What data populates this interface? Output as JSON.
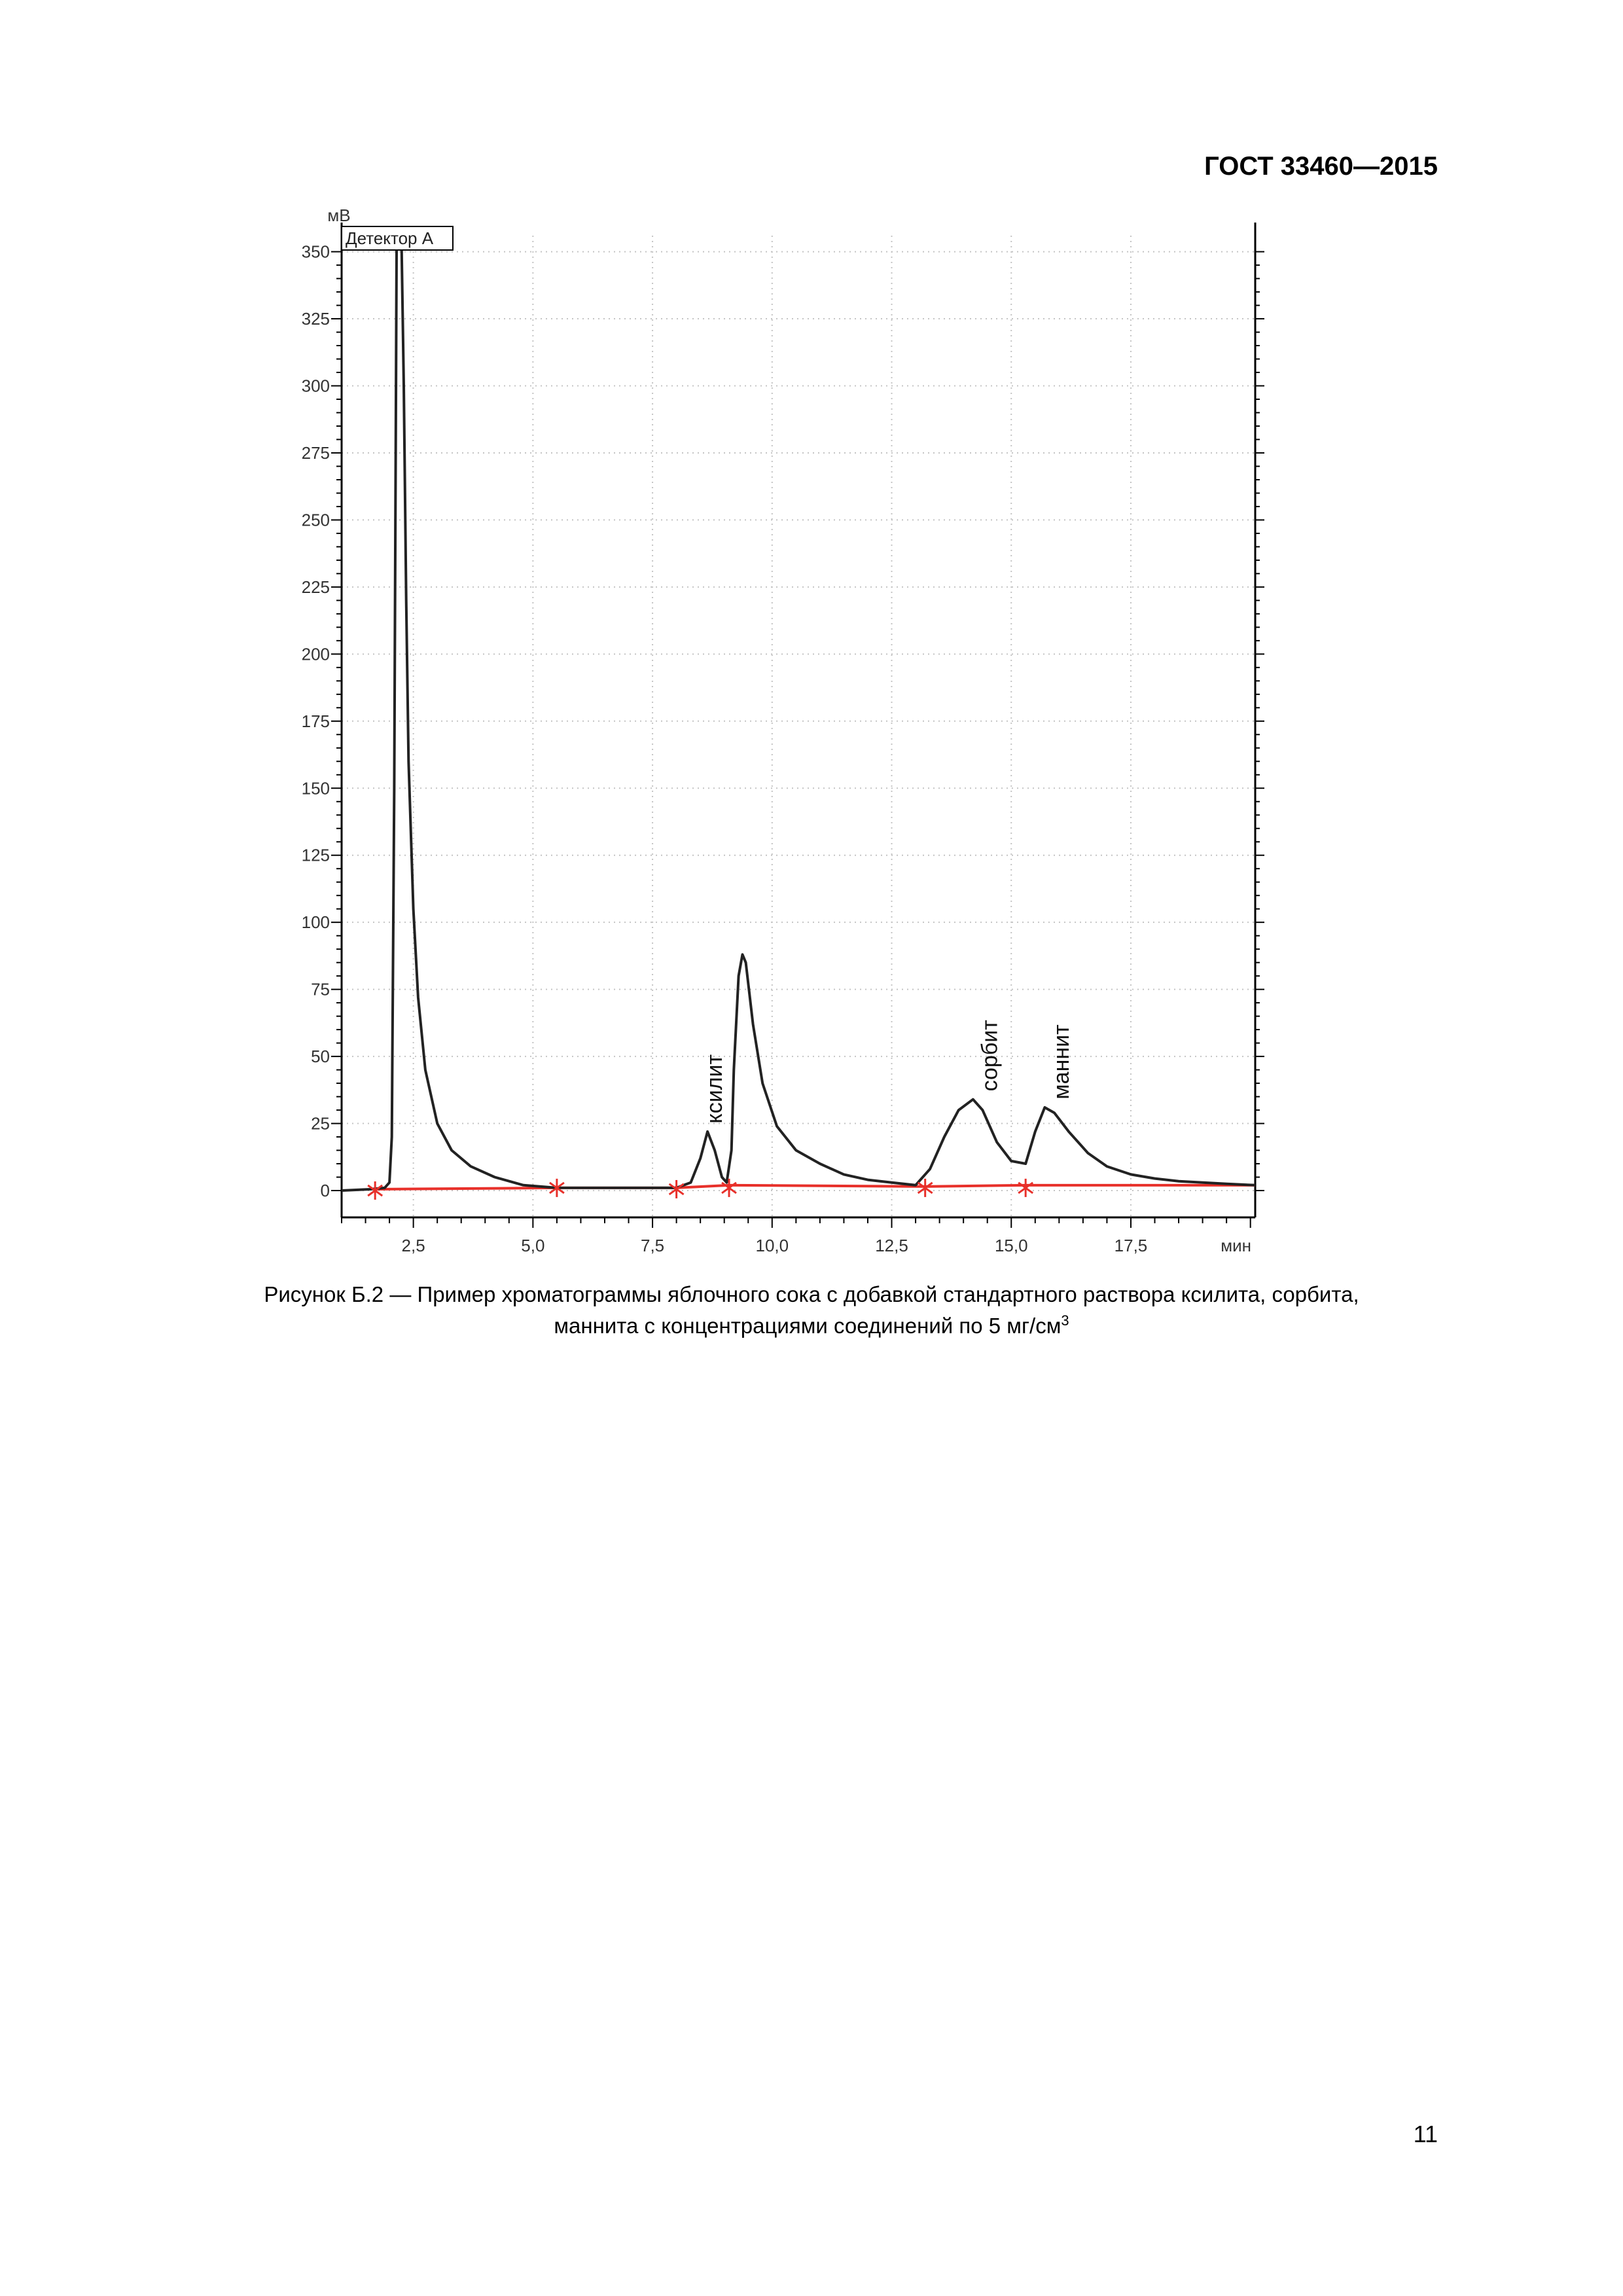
{
  "document": {
    "header": "ГОСТ 33460—2015",
    "caption_line1": "Рисунок Б.2 — Пример хроматограммы яблочного сока с добавкой стандартного раствора ксилита, сорбита,",
    "caption_line2": "маннита с концентрациями соединений по 5 мг/см",
    "caption_sup": "3",
    "page_number": "11"
  },
  "chart_data": {
    "type": "line",
    "legend": "Детектор А",
    "xlabel": "мин",
    "ylabel": "мВ",
    "xlim": [
      1.0,
      20.1
    ],
    "ylim": [
      -10,
      356
    ],
    "x_ticks": [
      2.5,
      5.0,
      7.5,
      10.0,
      12.5,
      15.0,
      17.5
    ],
    "x_tick_labels": [
      "2,5",
      "5,0",
      "7,5",
      "10,0",
      "12,5",
      "15,0",
      "17,5"
    ],
    "y_ticks": [
      0,
      25,
      50,
      75,
      100,
      125,
      150,
      175,
      200,
      225,
      250,
      275,
      300,
      325,
      350
    ],
    "y_tick_labels": [
      "0",
      "25",
      "50",
      "75",
      "100",
      "125",
      "150",
      "175",
      "200",
      "225",
      "250",
      "275",
      "300",
      "325",
      "350"
    ],
    "grid": true,
    "colors": {
      "signal": "#222222",
      "baseline": "#e8302a",
      "grid": "#c4c4c4"
    },
    "series": [
      {
        "x": [
          1.0,
          1.6,
          1.9,
          2.0,
          2.05,
          2.1,
          2.15,
          2.2,
          2.25,
          2.3,
          2.35,
          2.4,
          2.5,
          2.6,
          2.75,
          3.0,
          3.3,
          3.7,
          4.2,
          4.8,
          5.5,
          6.5,
          7.5,
          8.0,
          8.3,
          8.5,
          8.65,
          8.8,
          8.95,
          9.05,
          9.15,
          9.2,
          9.3,
          9.38,
          9.45,
          9.6,
          9.8,
          10.1,
          10.5,
          11.0,
          11.5,
          12.0,
          12.5,
          13.0,
          13.3,
          13.6,
          13.9,
          14.2,
          14.4,
          14.7,
          15.0,
          15.3,
          15.5,
          15.7,
          15.9,
          16.2,
          16.6,
          17.0,
          17.5,
          18.0,
          18.5,
          19.0,
          19.5,
          20.1
        ],
        "y": [
          0,
          0.5,
          1,
          3,
          20,
          150,
          356,
          356,
          356,
          300,
          220,
          160,
          105,
          72,
          45,
          25,
          15,
          9,
          5,
          2,
          1,
          1,
          1,
          1,
          3,
          12,
          22,
          15,
          5,
          3,
          15,
          45,
          80,
          88,
          85,
          62,
          40,
          24,
          15,
          10,
          6,
          4,
          3,
          2,
          8,
          20,
          30,
          34,
          30,
          18,
          11,
          10,
          22,
          31,
          29,
          22,
          14,
          9,
          6,
          4.5,
          3.5,
          3,
          2.5,
          2
        ]
      }
    ],
    "baseline_segments": [
      {
        "x": [
          1.7,
          5.5
        ],
        "y": [
          0.5,
          1
        ]
      },
      {
        "x": [
          5.5,
          8.0
        ],
        "y": [
          1,
          1
        ]
      },
      {
        "x": [
          8.0,
          9.1
        ],
        "y": [
          1,
          2
        ]
      },
      {
        "x": [
          9.1,
          13.2
        ],
        "y": [
          2,
          1.5
        ]
      },
      {
        "x": [
          13.2,
          15.3
        ],
        "y": [
          1.5,
          2
        ]
      },
      {
        "x": [
          15.3,
          20.1
        ],
        "y": [
          2,
          2
        ]
      }
    ],
    "integration_marks": [
      {
        "x": 1.7,
        "y": 0
      },
      {
        "x": 5.5,
        "y": 1
      },
      {
        "x": 8.0,
        "y": 0.5
      },
      {
        "x": 9.1,
        "y": 1
      },
      {
        "x": 13.2,
        "y": 1
      },
      {
        "x": 15.3,
        "y": 1
      }
    ],
    "annotations": [
      {
        "text": "ксилит",
        "x": 8.95,
        "y": 25
      },
      {
        "text": "сорбит",
        "x": 14.7,
        "y": 37
      },
      {
        "text": "маннит",
        "x": 16.2,
        "y": 34
      }
    ]
  }
}
